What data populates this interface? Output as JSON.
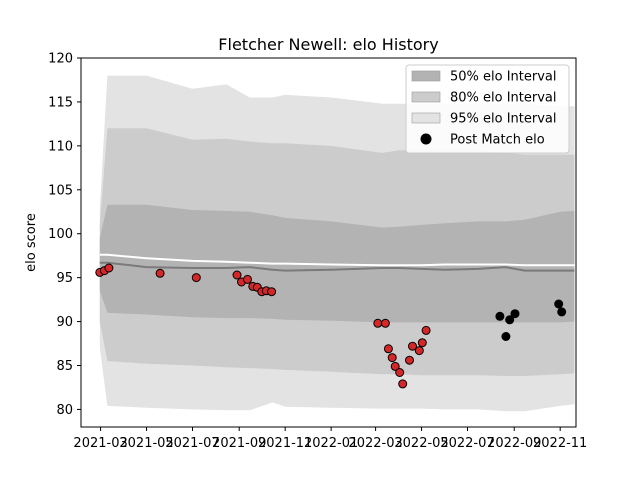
{
  "chart_data": {
    "type": "line",
    "title": "Fletcher Newell: elo History",
    "xlabel": "",
    "ylabel": "elo score",
    "x_range": [
      "2021-02-03",
      "2022-11-22"
    ],
    "ylim": [
      78,
      120
    ],
    "y_ticks": [
      80,
      85,
      90,
      95,
      100,
      105,
      110,
      115,
      120
    ],
    "x_ticks": [
      "2021-03",
      "2021-05",
      "2021-07",
      "2021-09",
      "2021-11",
      "2022-01",
      "2022-03",
      "2022-05",
      "2022-07",
      "2022-09",
      "2022-11"
    ],
    "grid": false,
    "legend_position": "top-right",
    "legend": [
      {
        "label": "50% elo Interval",
        "color": "#b3b3b3"
      },
      {
        "label": "80% elo Interval",
        "color": "#cccccc"
      },
      {
        "label": "95% elo Interval",
        "color": "#e3e3e3"
      },
      {
        "label": "Post Match elo",
        "color": "#000000"
      }
    ],
    "bands": {
      "x": [
        "2021-02-28",
        "2021-03-10",
        "2021-05-01",
        "2021-07-01",
        "2021-08-15",
        "2021-09-15",
        "2021-10-15",
        "2021-11-01",
        "2022-01-01",
        "2022-03-10",
        "2022-04-01",
        "2022-05-01",
        "2022-06-01",
        "2022-07-15",
        "2022-08-20",
        "2022-09-15",
        "2022-11-01",
        "2022-11-20"
      ],
      "p95_upper": [
        103,
        118,
        118,
        116.5,
        117,
        115.5,
        115.5,
        115.8,
        115.5,
        114.8,
        114.8,
        114.8,
        114.8,
        114.8,
        114.8,
        114.8,
        114.5,
        114.5
      ],
      "p80_upper": [
        101,
        112,
        112,
        110.7,
        110.8,
        110.5,
        110.3,
        110.3,
        110,
        109.2,
        109.5,
        109.5,
        109.5,
        109.5,
        109.2,
        109.0,
        109.0,
        109.0
      ],
      "p50_upper": [
        99.5,
        103.3,
        103.3,
        102.7,
        102.6,
        102.5,
        102.1,
        101.8,
        101.4,
        100.7,
        100.8,
        101,
        101.2,
        101.4,
        101.4,
        101.6,
        102.5,
        102.6
      ],
      "p50_lower": [
        93.5,
        91.0,
        90.8,
        90.5,
        90.4,
        90.4,
        90.3,
        90.2,
        90.1,
        89.9,
        89.9,
        89.9,
        89.9,
        89.9,
        89.9,
        89.9,
        89.9,
        90.0
      ],
      "p80_lower": [
        90,
        85.5,
        85.2,
        85,
        84.8,
        84.7,
        84.6,
        84.5,
        84.3,
        84.0,
        84.0,
        83.9,
        83.9,
        83.9,
        83.8,
        83.8,
        84.0,
        84.1
      ],
      "p95_lower": [
        87,
        80.4,
        80.2,
        80.0,
        79.9,
        79.9,
        80.8,
        80.3,
        80.2,
        80.1,
        80.1,
        80.1,
        80.0,
        80.0,
        79.8,
        79.8,
        80.4,
        80.6
      ],
      "mean": [
        96.7,
        96.7,
        96.2,
        96.1,
        96.1,
        96.2,
        95.9,
        95.8,
        95.9,
        96.1,
        96.1,
        96.0,
        95.9,
        96.0,
        96.2,
        95.8,
        95.8,
        95.8
      ],
      "expected": [
        97.6,
        97.6,
        97.2,
        96.9,
        96.8,
        96.7,
        96.6,
        96.6,
        96.5,
        96.4,
        96.4,
        96.4,
        96.5,
        96.5,
        96.5,
        96.4,
        96.4,
        96.4
      ]
    },
    "series": [
      {
        "name": "Post Match elo",
        "marker": "circle",
        "points": [
          {
            "x": "2021-02-28",
            "y": 95.6,
            "color": "#d62728"
          },
          {
            "x": "2021-03-06",
            "y": 95.8,
            "color": "#d62728"
          },
          {
            "x": "2021-03-12",
            "y": 96.1,
            "color": "#d62728"
          },
          {
            "x": "2021-05-19",
            "y": 95.5,
            "color": "#d62728"
          },
          {
            "x": "2021-07-06",
            "y": 95.0,
            "color": "#d62728"
          },
          {
            "x": "2021-08-29",
            "y": 95.3,
            "color": "#d62728"
          },
          {
            "x": "2021-09-04",
            "y": 94.5,
            "color": "#d62728"
          },
          {
            "x": "2021-09-12",
            "y": 94.8,
            "color": "#d62728"
          },
          {
            "x": "2021-09-19",
            "y": 94.0,
            "color": "#d62728"
          },
          {
            "x": "2021-09-25",
            "y": 93.9,
            "color": "#d62728"
          },
          {
            "x": "2021-10-01",
            "y": 93.4,
            "color": "#d62728"
          },
          {
            "x": "2021-10-07",
            "y": 93.5,
            "color": "#d62728"
          },
          {
            "x": "2021-10-14",
            "y": 93.4,
            "color": "#d62728"
          },
          {
            "x": "2022-03-04",
            "y": 89.8,
            "color": "#d62728"
          },
          {
            "x": "2022-03-14",
            "y": 89.8,
            "color": "#d62728"
          },
          {
            "x": "2022-03-18",
            "y": 86.9,
            "color": "#d62728"
          },
          {
            "x": "2022-03-23",
            "y": 85.9,
            "color": "#d62728"
          },
          {
            "x": "2022-03-27",
            "y": 84.9,
            "color": "#d62728"
          },
          {
            "x": "2022-04-02",
            "y": 84.2,
            "color": "#d62728"
          },
          {
            "x": "2022-04-06",
            "y": 82.9,
            "color": "#d62728"
          },
          {
            "x": "2022-04-15",
            "y": 85.6,
            "color": "#d62728"
          },
          {
            "x": "2022-04-19",
            "y": 87.2,
            "color": "#d62728"
          },
          {
            "x": "2022-04-28",
            "y": 86.7,
            "color": "#d62728"
          },
          {
            "x": "2022-05-02",
            "y": 87.6,
            "color": "#d62728"
          },
          {
            "x": "2022-05-07",
            "y": 89.0,
            "color": "#d62728"
          },
          {
            "x": "2022-08-13",
            "y": 90.6,
            "color": "#000000"
          },
          {
            "x": "2022-08-21",
            "y": 88.3,
            "color": "#000000"
          },
          {
            "x": "2022-08-26",
            "y": 90.2,
            "color": "#000000"
          },
          {
            "x": "2022-09-02",
            "y": 90.9,
            "color": "#000000"
          },
          {
            "x": "2022-10-30",
            "y": 92.0,
            "color": "#000000"
          },
          {
            "x": "2022-11-03",
            "y": 91.1,
            "color": "#000000"
          }
        ]
      }
    ]
  }
}
